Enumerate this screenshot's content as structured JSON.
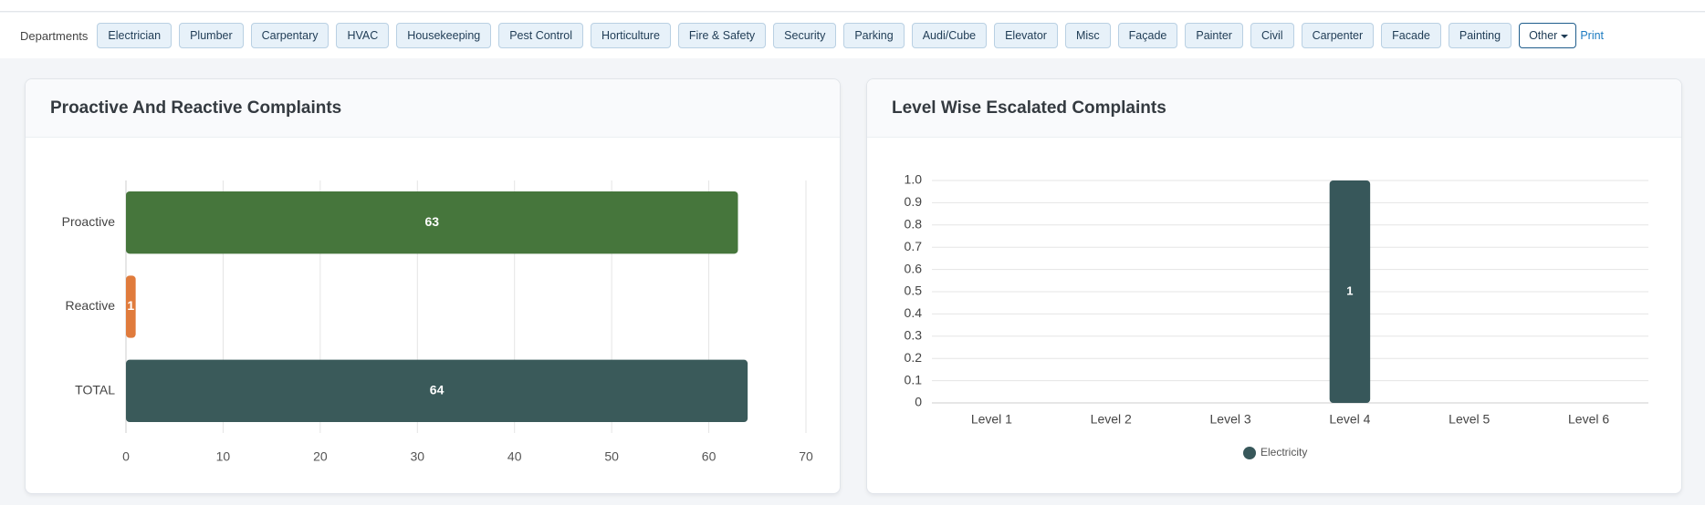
{
  "toolbar": {
    "label": "Departments",
    "buttons": [
      "Electrician",
      "Plumber",
      "Carpentary",
      "HVAC",
      "Housekeeping",
      "Pest Control",
      "Horticulture",
      "Fire & Safety",
      "Security",
      "Parking",
      "Audi/Cube",
      "Elevator",
      "Misc",
      "Façade",
      "Painter",
      "Civil",
      "Carpenter",
      "Facade",
      "Painting"
    ],
    "dropdown": "Other",
    "print": "Print"
  },
  "chart_data": [
    {
      "type": "bar",
      "orientation": "horizontal",
      "title": "Proactive And Reactive Complaints",
      "categories": [
        "Proactive",
        "Reactive",
        "TOTAL"
      ],
      "values": [
        63,
        1,
        64
      ],
      "colors": [
        "#46763c",
        "#e07b3c",
        "#3a5a5a"
      ],
      "xlim": [
        0,
        70
      ],
      "xticks": [
        0,
        10,
        20,
        30,
        40,
        50,
        60,
        70
      ],
      "grid": true
    },
    {
      "type": "bar",
      "orientation": "vertical",
      "title": "Level Wise Escalated Complaints",
      "categories": [
        "Level 1",
        "Level 2",
        "Level 3",
        "Level 4",
        "Level 5",
        "Level 6"
      ],
      "series": [
        {
          "name": "Electricity",
          "color": "#37575a",
          "values": [
            0,
            0,
            0,
            1,
            0,
            0
          ]
        }
      ],
      "ylim": [
        0,
        1
      ],
      "yticks": [
        0,
        0.1,
        0.2,
        0.3,
        0.4,
        0.5,
        0.6,
        0.7,
        0.8,
        0.9,
        {
          "value": 1,
          "label": "1.0"
        }
      ],
      "grid": true,
      "legend": "bottom"
    }
  ]
}
